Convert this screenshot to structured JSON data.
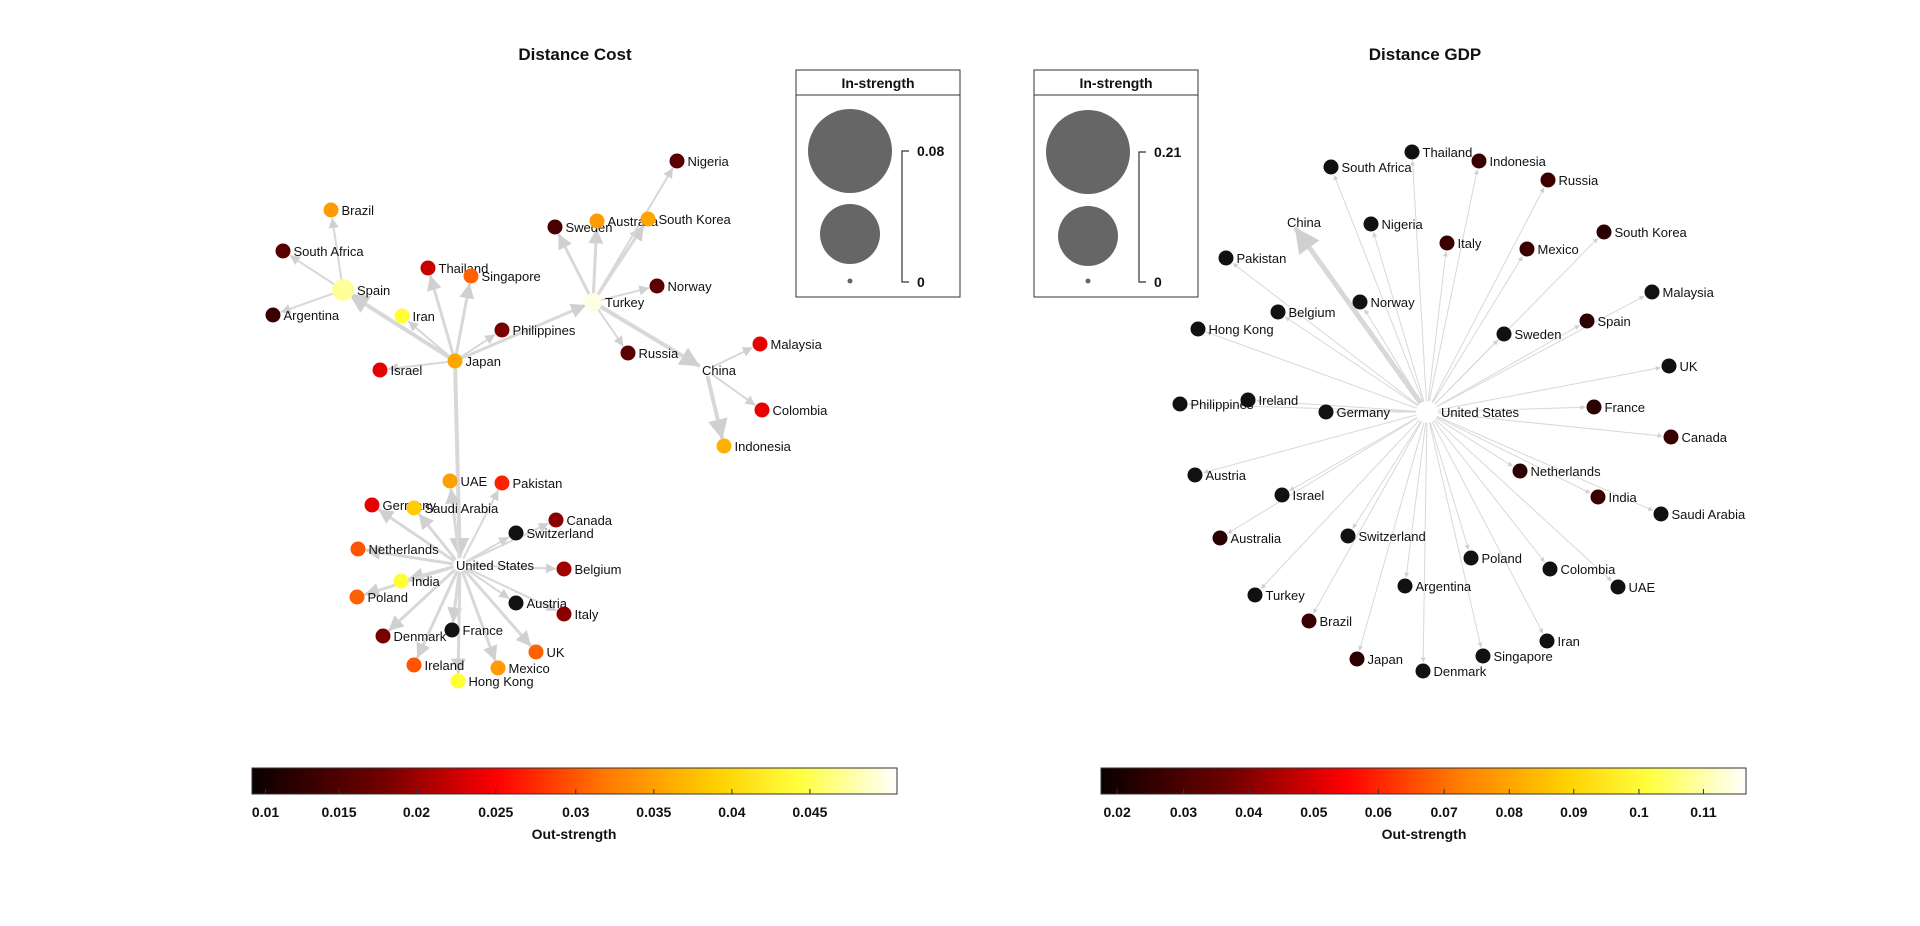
{
  "panels": [
    {
      "title": "Distance Cost",
      "legend": {
        "title": "In-strength",
        "max_label": "0.08",
        "min_label": "0"
      },
      "colorbar": {
        "label": "Out-strength",
        "ticks": [
          "0.01",
          "0.015",
          "0.02",
          "0.025",
          "0.03",
          "0.035",
          "0.04",
          "0.045"
        ]
      },
      "nodes": [
        {
          "name": "Brazil",
          "color": "#ff9a00"
        },
        {
          "name": "South Africa",
          "color": "#5a0000"
        },
        {
          "name": "Spain",
          "color": "#ffff9a"
        },
        {
          "name": "Argentina",
          "color": "#3a0000"
        },
        {
          "name": "Thailand",
          "color": "#c80000"
        },
        {
          "name": "Singapore",
          "color": "#ff6000"
        },
        {
          "name": "Iran",
          "color": "#ffff33"
        },
        {
          "name": "Israel",
          "color": "#e60000"
        },
        {
          "name": "Japan",
          "color": "#ffa500"
        },
        {
          "name": "Philippines",
          "color": "#7a0000"
        },
        {
          "name": "Nigeria",
          "color": "#5a0000"
        },
        {
          "name": "Sweden",
          "color": "#4a0000"
        },
        {
          "name": "Australia",
          "color": "#ff9a00"
        },
        {
          "name": "South Korea",
          "color": "#ffa500"
        },
        {
          "name": "Norway",
          "color": "#5a0000"
        },
        {
          "name": "Turkey",
          "color": "#ffffe0"
        },
        {
          "name": "Russia",
          "color": "#5a0000"
        },
        {
          "name": "China",
          "color": "#ffffff"
        },
        {
          "name": "Malaysia",
          "color": "#e60000"
        },
        {
          "name": "Colombia",
          "color": "#e60000"
        },
        {
          "name": "Indonesia",
          "color": "#ffb000"
        },
        {
          "name": "UAE",
          "color": "#ffa000"
        },
        {
          "name": "Pakistan",
          "color": "#ff2000"
        },
        {
          "name": "Germany",
          "color": "#e60000"
        },
        {
          "name": "Saudi Arabia",
          "color": "#ffcc00"
        },
        {
          "name": "Canada",
          "color": "#8a0000"
        },
        {
          "name": "Switzerland",
          "color": "#111111"
        },
        {
          "name": "Netherlands",
          "color": "#ff5500"
        },
        {
          "name": "United States",
          "color": "#ffffff"
        },
        {
          "name": "Belgium",
          "color": "#a00000"
        },
        {
          "name": "India",
          "color": "#ffff33"
        },
        {
          "name": "Poland",
          "color": "#ff6000"
        },
        {
          "name": "Austria",
          "color": "#111111"
        },
        {
          "name": "Italy",
          "color": "#8a0000"
        },
        {
          "name": "Denmark",
          "color": "#7a0000"
        },
        {
          "name": "France",
          "color": "#111111"
        },
        {
          "name": "UK",
          "color": "#ff6000"
        },
        {
          "name": "Ireland",
          "color": "#ff5500"
        },
        {
          "name": "Mexico",
          "color": "#ff9a00"
        },
        {
          "name": "Hong Kong",
          "color": "#ffff33"
        }
      ]
    },
    {
      "title": "Distance GDP",
      "legend": {
        "title": "In-strength",
        "max_label": "0.21",
        "min_label": "0"
      },
      "colorbar": {
        "label": "Out-strength",
        "ticks": [
          "0.02",
          "0.03",
          "0.04",
          "0.05",
          "0.06",
          "0.07",
          "0.08",
          "0.09",
          "0.1",
          "0.11"
        ]
      },
      "nodes": [
        {
          "name": "South Africa",
          "color": "#111111"
        },
        {
          "name": "Thailand",
          "color": "#111111"
        },
        {
          "name": "Indonesia",
          "color": "#3a0000"
        },
        {
          "name": "Russia",
          "color": "#3a0000"
        },
        {
          "name": "China",
          "color": "#ffffff"
        },
        {
          "name": "Nigeria",
          "color": "#111111"
        },
        {
          "name": "Italy",
          "color": "#3a0000"
        },
        {
          "name": "Mexico",
          "color": "#3a0000"
        },
        {
          "name": "South Korea",
          "color": "#2a0000"
        },
        {
          "name": "Pakistan",
          "color": "#111111"
        },
        {
          "name": "Belgium",
          "color": "#111111"
        },
        {
          "name": "Norway",
          "color": "#111111"
        },
        {
          "name": "Malaysia",
          "color": "#111111"
        },
        {
          "name": "Hong Kong",
          "color": "#111111"
        },
        {
          "name": "Sweden",
          "color": "#111111"
        },
        {
          "name": "Spain",
          "color": "#2a0000"
        },
        {
          "name": "UK",
          "color": "#111111"
        },
        {
          "name": "Philippines",
          "color": "#111111"
        },
        {
          "name": "Ireland",
          "color": "#111111"
        },
        {
          "name": "Germany",
          "color": "#111111"
        },
        {
          "name": "United States",
          "color": "#ffffff"
        },
        {
          "name": "France",
          "color": "#2a0000"
        },
        {
          "name": "Canada",
          "color": "#3a0000"
        },
        {
          "name": "Austria",
          "color": "#111111"
        },
        {
          "name": "Netherlands",
          "color": "#2a0000"
        },
        {
          "name": "Israel",
          "color": "#111111"
        },
        {
          "name": "India",
          "color": "#3a0000"
        },
        {
          "name": "Saudi Arabia",
          "color": "#111111"
        },
        {
          "name": "Australia",
          "color": "#2a0000"
        },
        {
          "name": "Switzerland",
          "color": "#111111"
        },
        {
          "name": "Poland",
          "color": "#111111"
        },
        {
          "name": "Colombia",
          "color": "#111111"
        },
        {
          "name": "UAE",
          "color": "#111111"
        },
        {
          "name": "Turkey",
          "color": "#111111"
        },
        {
          "name": "Argentina",
          "color": "#111111"
        },
        {
          "name": "Brazil",
          "color": "#3a0000"
        },
        {
          "name": "Iran",
          "color": "#111111"
        },
        {
          "name": "Singapore",
          "color": "#111111"
        },
        {
          "name": "Japan",
          "color": "#2a0000"
        },
        {
          "name": "Denmark",
          "color": "#111111"
        }
      ]
    }
  ]
}
